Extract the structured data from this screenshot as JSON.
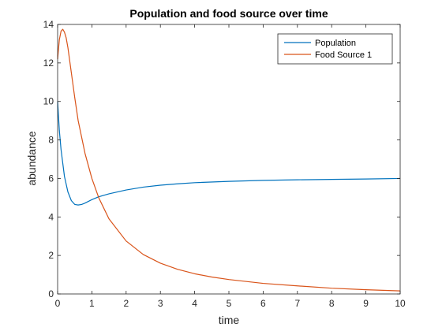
{
  "chart_data": {
    "type": "line",
    "title": "Population and food source over time",
    "xlabel": "time",
    "ylabel": "abundance",
    "xlim": [
      0,
      10
    ],
    "ylim": [
      0,
      14
    ],
    "xticks": [
      0,
      1,
      2,
      3,
      4,
      5,
      6,
      7,
      8,
      9,
      10
    ],
    "yticks": [
      0,
      2,
      4,
      6,
      8,
      10,
      12,
      14
    ],
    "grid": false,
    "legend_position": "top-right",
    "series": [
      {
        "name": "Population",
        "color": "#0072BD",
        "x": [
          0,
          0.05,
          0.1,
          0.15,
          0.2,
          0.3,
          0.4,
          0.5,
          0.6,
          0.7,
          0.8,
          1.0,
          1.2,
          1.5,
          2.0,
          2.5,
          3.0,
          3.5,
          4.0,
          5.0,
          6.0,
          7.0,
          8.0,
          9.0,
          10.0
        ],
        "y": [
          10.0,
          8.5,
          7.5,
          6.8,
          6.1,
          5.3,
          4.85,
          4.65,
          4.62,
          4.65,
          4.72,
          4.9,
          5.05,
          5.2,
          5.4,
          5.55,
          5.65,
          5.72,
          5.78,
          5.85,
          5.9,
          5.93,
          5.95,
          5.97,
          6.0
        ]
      },
      {
        "name": "Food Source 1",
        "color": "#D95319",
        "x": [
          0,
          0.05,
          0.1,
          0.15,
          0.2,
          0.25,
          0.3,
          0.4,
          0.5,
          0.6,
          0.8,
          1.0,
          1.2,
          1.5,
          2.0,
          2.5,
          3.0,
          3.5,
          4.0,
          4.5,
          5.0,
          6.0,
          7.0,
          8.0,
          9.0,
          10.0
        ],
        "y": [
          12.2,
          13.2,
          13.65,
          13.75,
          13.6,
          13.3,
          12.8,
          11.5,
          10.2,
          9.0,
          7.3,
          6.0,
          5.0,
          3.9,
          2.75,
          2.05,
          1.6,
          1.28,
          1.05,
          0.88,
          0.75,
          0.55,
          0.42,
          0.3,
          0.22,
          0.16
        ]
      }
    ]
  }
}
